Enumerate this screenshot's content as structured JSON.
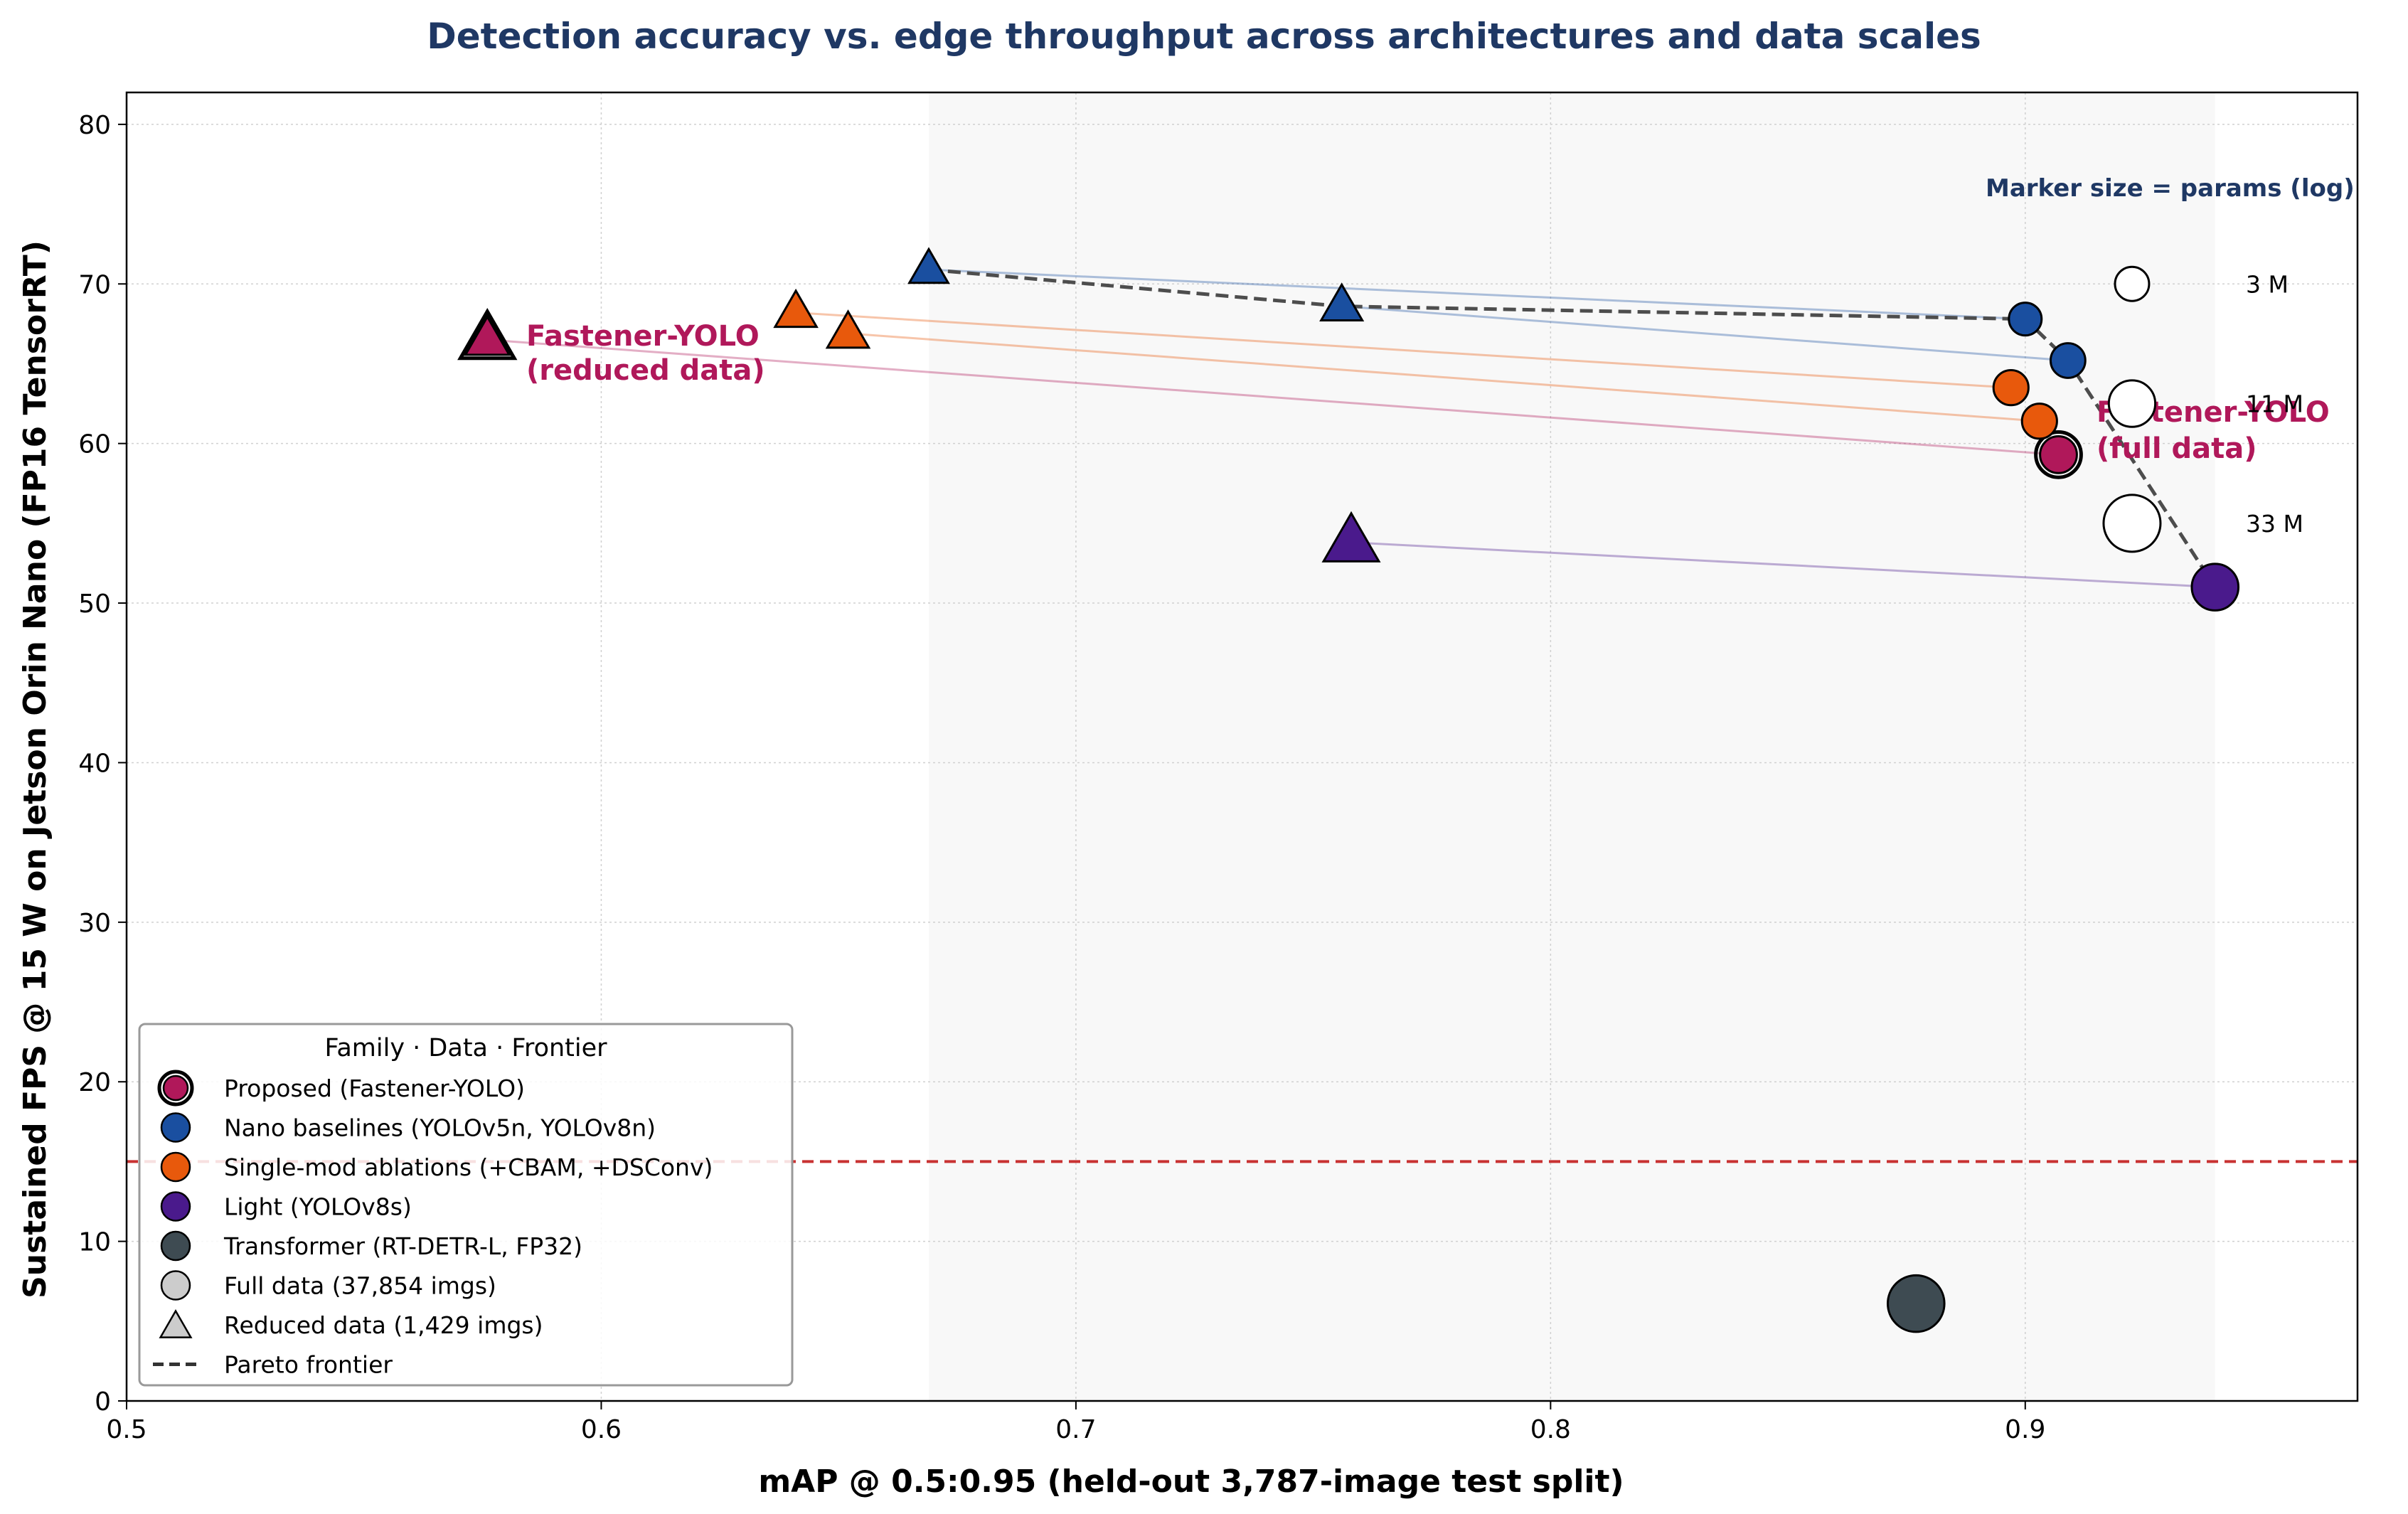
{
  "chart_data": {
    "type": "scatter",
    "title": "Detection accuracy vs. edge throughput across architectures and data scales",
    "xlabel": "mAP @ 0.5:0.95  (held-out 3,787-image test split)",
    "ylabel": "Sustained FPS @ 15 W on Jetson Orin Nano  (FP16 TensorRT)",
    "xlim": [
      0.5,
      0.97
    ],
    "ylim": [
      0,
      82
    ],
    "x_ticks": [
      "0.5",
      "0.6",
      "0.7",
      "0.8",
      "0.9"
    ],
    "y_ticks": [
      "0",
      "10",
      "20",
      "30",
      "40",
      "50",
      "60",
      "70",
      "80"
    ],
    "grid": true,
    "colors": {
      "proposed": "#b0185a",
      "nano": "#1a4fa0",
      "ablation": "#e8590c",
      "light": "#4a1a8c",
      "transformer": "#3e4b52",
      "reference_line": "#c83232",
      "frontier": "#4d4d4d"
    },
    "reference_line_y": 15,
    "series": [
      {
        "name": "Proposed (Fastener-YOLO)",
        "family": "proposed",
        "points": [
          {
            "data": "full",
            "x": 0.907,
            "y": 59.3,
            "params_m": 4.0
          },
          {
            "data": "reduced",
            "x": 0.576,
            "y": 66.5,
            "params_m": 4.0
          }
        ]
      },
      {
        "name": "Nano baselines (YOLOv5n, YOLOv8n)",
        "family": "nano",
        "points": [
          {
            "data": "full",
            "x": 0.9,
            "y": 67.8,
            "params_m": 2.6
          },
          {
            "data": "full",
            "x": 0.909,
            "y": 65.2,
            "params_m": 3.2
          },
          {
            "data": "reduced",
            "x": 0.669,
            "y": 70.9,
            "params_m": 2.6
          },
          {
            "data": "reduced",
            "x": 0.756,
            "y": 68.6,
            "params_m": 3.2
          }
        ]
      },
      {
        "name": "Single-mod ablations (+CBAM, +DSConv)",
        "family": "ablation",
        "points": [
          {
            "data": "full",
            "x": 0.897,
            "y": 63.5,
            "params_m": 3.3
          },
          {
            "data": "full",
            "x": 0.903,
            "y": 61.4,
            "params_m": 3.3
          },
          {
            "data": "reduced",
            "x": 0.641,
            "y": 68.2,
            "params_m": 3.3
          },
          {
            "data": "reduced",
            "x": 0.652,
            "y": 66.9,
            "params_m": 3.3
          }
        ]
      },
      {
        "name": "Light (YOLOv8s)",
        "family": "light",
        "points": [
          {
            "data": "full",
            "x": 0.94,
            "y": 51.0,
            "params_m": 11.2
          },
          {
            "data": "reduced",
            "x": 0.758,
            "y": 53.8,
            "params_m": 11.2
          }
        ]
      },
      {
        "name": "Transformer (RT-DETR-L, FP32)",
        "family": "transformer",
        "points": [
          {
            "data": "full",
            "x": 0.877,
            "y": 6.1,
            "params_m": 32.0
          }
        ]
      }
    ],
    "pareto_frontier": [
      {
        "x": 0.669,
        "y": 70.9
      },
      {
        "x": 0.756,
        "y": 68.6
      },
      {
        "x": 0.9,
        "y": 67.8
      },
      {
        "x": 0.909,
        "y": 65.2
      },
      {
        "x": 0.94,
        "y": 51.0
      }
    ],
    "shaded_region_x": [
      0.669,
      0.94
    ],
    "annotations": {
      "reduced": {
        "line1": "Fastener-YOLO",
        "line2": "(reduced data)"
      },
      "full": {
        "line1": "Fastener-YOLO",
        "line2": "(full data)"
      }
    },
    "size_legend": {
      "title": "Marker size = params (log)",
      "entries": [
        {
          "label": "3 M",
          "params_m": 3
        },
        {
          "label": "11 M",
          "params_m": 11
        },
        {
          "label": "33 M",
          "params_m": 33
        }
      ]
    },
    "legend": {
      "title": "Family · Data · Frontier",
      "placement": "lower-left",
      "entries": [
        {
          "label": "Proposed (Fastener-YOLO)",
          "marker": "circle",
          "color": "#b0185a"
        },
        {
          "label": "Nano baselines (YOLOv5n, YOLOv8n)",
          "marker": "circle",
          "color": "#1a4fa0"
        },
        {
          "label": "Single-mod ablations (+CBAM, +DSConv)",
          "marker": "circle",
          "color": "#e8590c"
        },
        {
          "label": "Light (YOLOv8s)",
          "marker": "circle",
          "color": "#4a1a8c"
        },
        {
          "label": "Transformer (RT-DETR-L, FP32)",
          "marker": "circle",
          "color": "#3e4b52"
        },
        {
          "label": "Full data (37,854 imgs)",
          "marker": "circle",
          "color": "#cccccc"
        },
        {
          "label": "Reduced data (1,429 imgs)",
          "marker": "triangle",
          "color": "#cccccc"
        },
        {
          "label": "Pareto frontier",
          "marker": "dash",
          "color": "#333333"
        }
      ]
    }
  }
}
